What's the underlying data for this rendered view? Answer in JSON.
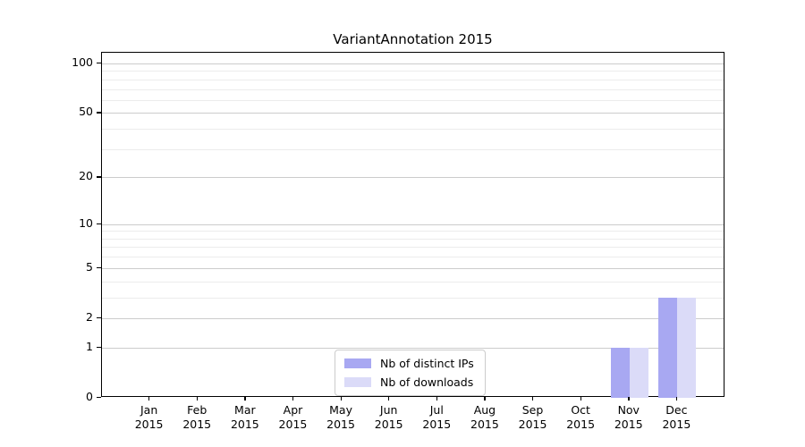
{
  "chart_data": {
    "type": "bar",
    "title": "VariantAnnotation 2015",
    "categories": [
      "Jan 2015",
      "Feb 2015",
      "Mar 2015",
      "Apr 2015",
      "May 2015",
      "Jun 2015",
      "Jul 2015",
      "Aug 2015",
      "Sep 2015",
      "Oct 2015",
      "Nov 2015",
      "Dec 2015"
    ],
    "x_tick_line1": [
      "Jan",
      "Feb",
      "Mar",
      "Apr",
      "May",
      "Jun",
      "Jul",
      "Aug",
      "Sep",
      "Oct",
      "Nov",
      "Dec"
    ],
    "x_tick_line2": "2015",
    "series": [
      {
        "name": "Nb of distinct IPs",
        "color": "#a8a8f2",
        "values": [
          0,
          0,
          0,
          0,
          0,
          0,
          0,
          0,
          0,
          0,
          1,
          3
        ]
      },
      {
        "name": "Nb of downloads",
        "color": "#dbdbf8",
        "values": [
          0,
          0,
          0,
          0,
          0,
          0,
          0,
          0,
          0,
          0,
          1,
          3
        ]
      }
    ],
    "y_axis": {
      "tick_values": [
        0,
        1,
        2,
        5,
        10,
        20,
        50,
        100
      ],
      "tick_labels": [
        "0",
        "1",
        "2",
        "5",
        "10",
        "20",
        "50",
        "100"
      ],
      "minor_gridline_values": [
        3,
        4,
        6,
        7,
        8,
        9,
        30,
        40,
        60,
        70,
        80,
        90
      ],
      "scale": "log1p",
      "range": [
        0,
        117
      ]
    },
    "grid": true,
    "legend_position": "lower center",
    "colors": {
      "major_grid": "#cccccc",
      "minor_grid": "#ececec",
      "spine": "#000000"
    }
  },
  "legend": {
    "items": [
      {
        "label": "Nb of distinct IPs",
        "color": "#a8a8f2"
      },
      {
        "label": "Nb of downloads",
        "color": "#dbdbf8"
      }
    ]
  }
}
